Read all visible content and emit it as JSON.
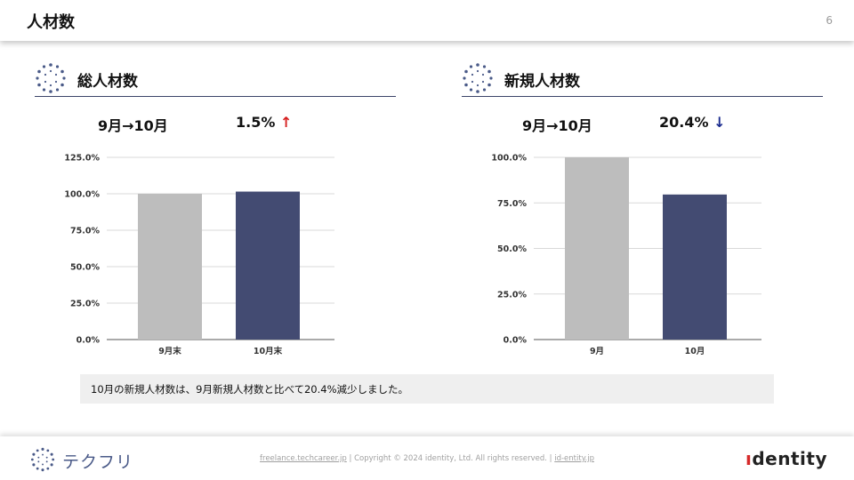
{
  "header": {
    "title": "人材数",
    "page_number": "6"
  },
  "left_panel": {
    "title": "総人材数",
    "period": "9月→10月",
    "change": "1.5%",
    "direction_icon": "arrow-up-icon",
    "direction_symbol": "↑",
    "direction_color": "#d61f1f"
  },
  "right_panel": {
    "title": "新規人材数",
    "period": "9月→10月",
    "change": "20.4%",
    "direction_icon": "arrow-down-icon",
    "direction_symbol": "↓",
    "direction_color": "#1a2b8e"
  },
  "chart_data": [
    {
      "type": "bar",
      "categories": [
        "9月末",
        "10月末"
      ],
      "values": [
        100.0,
        101.5
      ],
      "colors": [
        "#bdbdbd",
        "#434b72"
      ],
      "ylim": [
        0,
        125
      ],
      "yticks": [
        "0.0%",
        "25.0%",
        "50.0%",
        "75.0%",
        "100.0%",
        "125.0%"
      ],
      "grid": true,
      "title": "",
      "xlabel": "",
      "ylabel": ""
    },
    {
      "type": "bar",
      "categories": [
        "9月",
        "10月"
      ],
      "values": [
        100.0,
        79.6
      ],
      "colors": [
        "#bdbdbd",
        "#434b72"
      ],
      "ylim": [
        0,
        100
      ],
      "yticks": [
        "0.0%",
        "25.0%",
        "50.0%",
        "75.0%",
        "100.0%"
      ],
      "grid": true,
      "title": "",
      "xlabel": "",
      "ylabel": ""
    }
  ],
  "note": "10月の新規人材数は、9月新規人材数と比べて20.4%減少しました。",
  "footer": {
    "brand_name": "テクフリ",
    "link1": "freelance.techcareer.jp",
    "separator": "|",
    "copyright": "Copyright © 2024 identity, Ltd. All rights reserved.",
    "link2": "id-entity.jp",
    "company_logo_text": "identity"
  }
}
